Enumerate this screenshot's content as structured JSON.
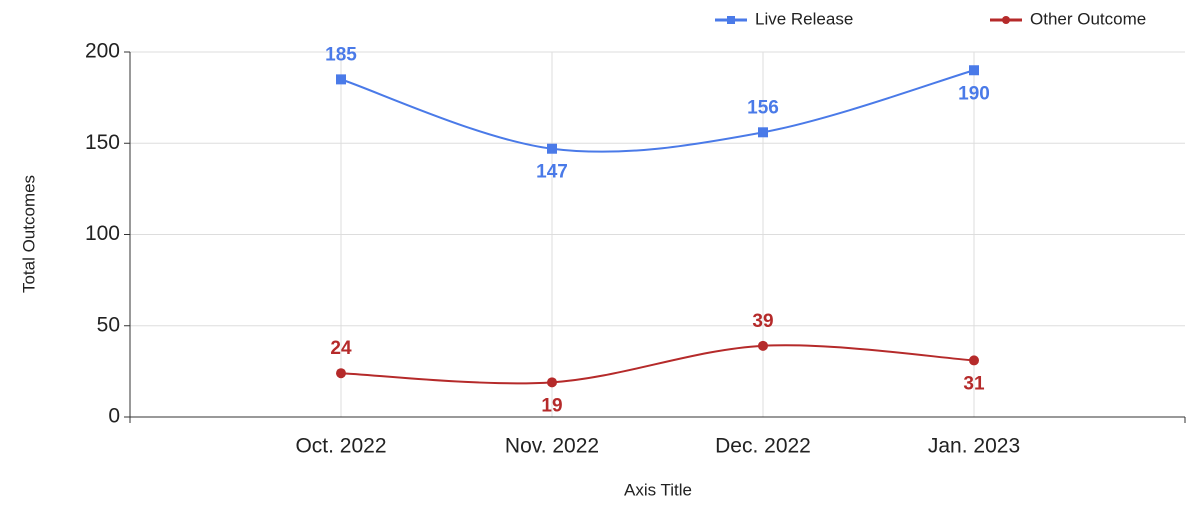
{
  "chart_data": {
    "type": "line",
    "categories": [
      "Oct. 2022",
      "Nov. 2022",
      "Dec. 2022",
      "Jan. 2023"
    ],
    "series": [
      {
        "name": "Live Release",
        "color": "#4a7ae8",
        "marker": "square",
        "values": [
          185,
          147,
          156,
          190
        ]
      },
      {
        "name": "Other Outcome",
        "color": "#b52a2a",
        "marker": "circle",
        "values": [
          24,
          19,
          39,
          31
        ]
      }
    ],
    "ylim": [
      0,
      200
    ],
    "yticks": [
      0,
      50,
      100,
      150,
      200
    ],
    "x_axis_title": "Axis Title",
    "y_axis_title": "Total Outcomes",
    "grid": true,
    "smooth": true,
    "legend": "top-right"
  }
}
